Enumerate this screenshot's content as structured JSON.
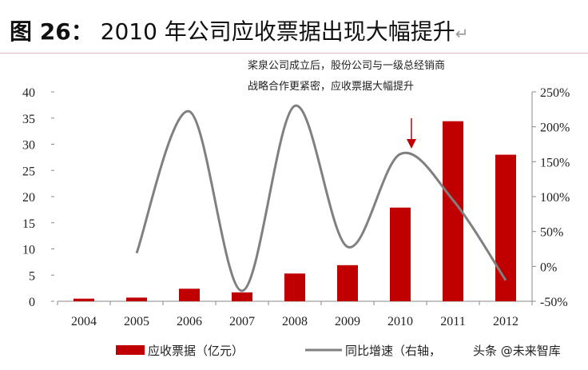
{
  "title": {
    "figure_no": "图 26：",
    "text": "2010 年公司应收票据出现大幅提升",
    "return_mark": "↵"
  },
  "chart_data": {
    "type": "bar+line",
    "categories": [
      "2004",
      "2005",
      "2006",
      "2007",
      "2008",
      "2009",
      "2010",
      "2011",
      "2012"
    ],
    "series": [
      {
        "name": "应收票据（亿元）",
        "type": "bar",
        "axis": "left",
        "color": "#c00000",
        "values": [
          0.5,
          0.7,
          2.4,
          1.7,
          5.3,
          6.9,
          17.9,
          34.4,
          28.0
        ]
      },
      {
        "name": "同比增速（右轴，",
        "type": "line",
        "axis": "right",
        "color": "#808080",
        "values": [
          null,
          19,
          222,
          -35,
          230,
          28,
          161,
          95,
          -20
        ]
      }
    ],
    "ylim_left": [
      0,
      40
    ],
    "yticks_left": [
      "0",
      "5",
      "10",
      "15",
      "20",
      "25",
      "30",
      "35",
      "40"
    ],
    "ylim_right": [
      -50,
      250
    ],
    "yticks_right": [
      "-50%",
      "0%",
      "50%",
      "100%",
      "150%",
      "200%",
      "250%"
    ],
    "annotation": {
      "lines": [
        "桨泉公司成立后，股份公司与一级总经销商",
        "战略合作更紧密，应收票据大幅提升"
      ],
      "arrow_at": "2010"
    },
    "legend_position": "bottom",
    "watermark": "头条 @未来智库"
  }
}
